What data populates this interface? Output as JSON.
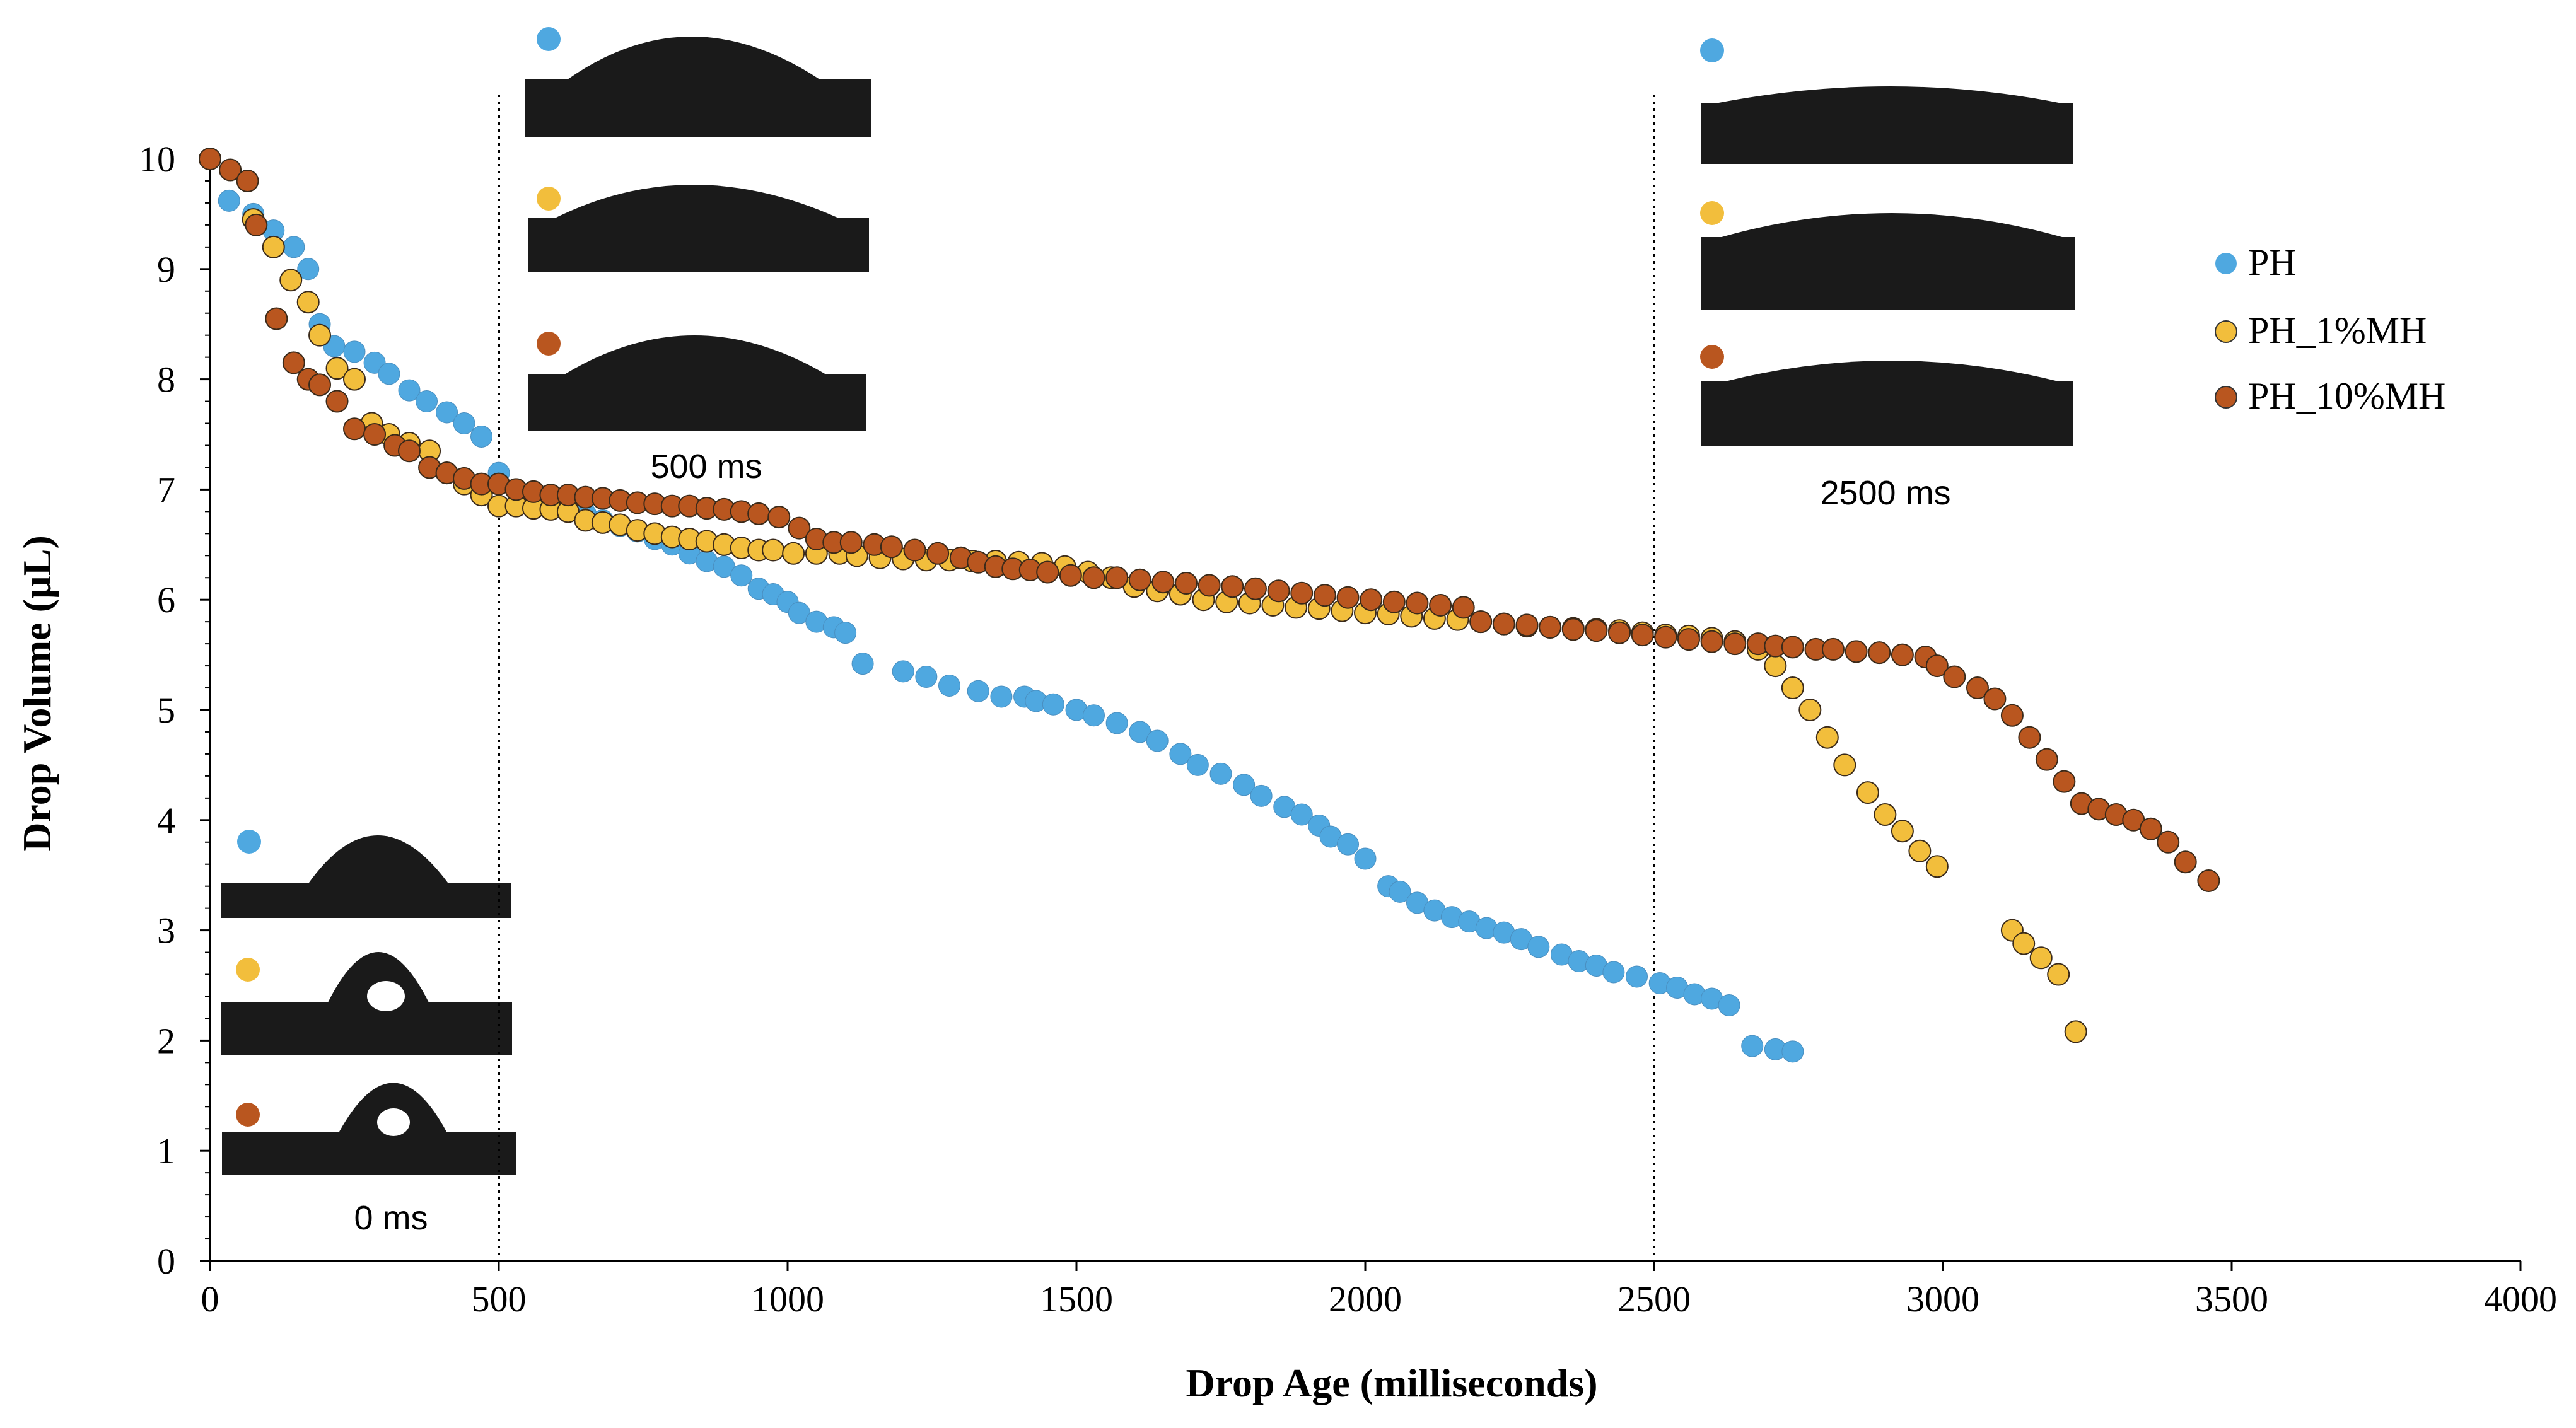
{
  "colors": {
    "PH": "#4FA8E0",
    "PH_1%MH": "#F2BE3C",
    "PH_10%MH": "#B9561F",
    "axis": "#000000",
    "photo_bg": "#1a1a1a"
  },
  "chart_data": {
    "type": "scatter",
    "title": "",
    "xlabel": "Drop Age (milliseconds)",
    "ylabel": "Drop Volume (µL)",
    "xlim": [
      0,
      4000
    ],
    "ylim": [
      0,
      10
    ],
    "xticks": [
      "0",
      "500",
      "1000",
      "1500",
      "2000",
      "2500",
      "3000",
      "3500",
      "4000"
    ],
    "yticks": [
      "0",
      "1",
      "2",
      "3",
      "4",
      "5",
      "6",
      "7",
      "8",
      "9",
      "10"
    ],
    "grid": false,
    "legend_position": "right",
    "reference_lines_x": [
      500,
      2500
    ],
    "annotations": [
      "0 ms",
      "500 ms",
      "2500 ms"
    ],
    "series": [
      {
        "name": "PH",
        "points": [
          [
            0,
            10
          ],
          [
            33,
            9.62
          ],
          [
            75,
            9.5
          ],
          [
            110,
            9.35
          ],
          [
            145,
            9.2
          ],
          [
            170,
            9.0
          ],
          [
            190,
            8.5
          ],
          [
            215,
            8.3
          ],
          [
            250,
            8.25
          ],
          [
            285,
            8.15
          ],
          [
            310,
            8.05
          ],
          [
            345,
            7.9
          ],
          [
            375,
            7.8
          ],
          [
            410,
            7.7
          ],
          [
            440,
            7.6
          ],
          [
            470,
            7.48
          ],
          [
            500,
            7.15
          ],
          [
            530,
            7.0
          ],
          [
            560,
            6.95
          ],
          [
            590,
            6.88
          ],
          [
            620,
            6.83
          ],
          [
            650,
            6.78
          ],
          [
            680,
            6.72
          ],
          [
            710,
            6.67
          ],
          [
            740,
            6.62
          ],
          [
            770,
            6.55
          ],
          [
            800,
            6.5
          ],
          [
            830,
            6.42
          ],
          [
            860,
            6.35
          ],
          [
            890,
            6.3
          ],
          [
            920,
            6.22
          ],
          [
            950,
            6.1
          ],
          [
            975,
            6.05
          ],
          [
            1000,
            5.98
          ],
          [
            1020,
            5.88
          ],
          [
            1050,
            5.8
          ],
          [
            1080,
            5.75
          ],
          [
            1100,
            5.7
          ],
          [
            1130,
            5.42
          ],
          [
            1200,
            5.35
          ],
          [
            1240,
            5.3
          ],
          [
            1280,
            5.22
          ],
          [
            1330,
            5.17
          ],
          [
            1370,
            5.12
          ],
          [
            1410,
            5.12
          ],
          [
            1430,
            5.08
          ],
          [
            1460,
            5.05
          ],
          [
            1500,
            5.0
          ],
          [
            1530,
            4.95
          ],
          [
            1570,
            4.88
          ],
          [
            1610,
            4.8
          ],
          [
            1640,
            4.72
          ],
          [
            1680,
            4.6
          ],
          [
            1710,
            4.5
          ],
          [
            1750,
            4.42
          ],
          [
            1790,
            4.32
          ],
          [
            1820,
            4.22
          ],
          [
            1860,
            4.12
          ],
          [
            1890,
            4.05
          ],
          [
            1920,
            3.95
          ],
          [
            1940,
            3.85
          ],
          [
            1970,
            3.78
          ],
          [
            2000,
            3.65
          ],
          [
            2040,
            3.4
          ],
          [
            2060,
            3.35
          ],
          [
            2090,
            3.25
          ],
          [
            2120,
            3.18
          ],
          [
            2150,
            3.12
          ],
          [
            2180,
            3.08
          ],
          [
            2210,
            3.02
          ],
          [
            2240,
            2.98
          ],
          [
            2270,
            2.92
          ],
          [
            2300,
            2.85
          ],
          [
            2340,
            2.78
          ],
          [
            2370,
            2.72
          ],
          [
            2400,
            2.68
          ],
          [
            2430,
            2.62
          ],
          [
            2470,
            2.58
          ],
          [
            2510,
            2.52
          ],
          [
            2540,
            2.48
          ],
          [
            2570,
            2.42
          ],
          [
            2600,
            2.38
          ],
          [
            2630,
            2.32
          ],
          [
            2670,
            1.95
          ],
          [
            2710,
            1.92
          ],
          [
            2740,
            1.9
          ]
        ]
      },
      {
        "name": "PH_1%MH",
        "points": [
          [
            0,
            10
          ],
          [
            75,
            9.45
          ],
          [
            110,
            9.2
          ],
          [
            140,
            8.9
          ],
          [
            170,
            8.7
          ],
          [
            190,
            8.4
          ],
          [
            220,
            8.1
          ],
          [
            250,
            8.0
          ],
          [
            280,
            7.6
          ],
          [
            310,
            7.5
          ],
          [
            345,
            7.42
          ],
          [
            380,
            7.35
          ],
          [
            410,
            7.15
          ],
          [
            440,
            7.05
          ],
          [
            470,
            6.95
          ],
          [
            500,
            6.85
          ],
          [
            530,
            6.85
          ],
          [
            560,
            6.83
          ],
          [
            590,
            6.82
          ],
          [
            620,
            6.8
          ],
          [
            650,
            6.72
          ],
          [
            680,
            6.7
          ],
          [
            710,
            6.68
          ],
          [
            740,
            6.63
          ],
          [
            770,
            6.6
          ],
          [
            800,
            6.57
          ],
          [
            830,
            6.55
          ],
          [
            860,
            6.53
          ],
          [
            890,
            6.5
          ],
          [
            920,
            6.47
          ],
          [
            950,
            6.45
          ],
          [
            975,
            6.45
          ],
          [
            1010,
            6.42
          ],
          [
            1050,
            6.42
          ],
          [
            1090,
            6.42
          ],
          [
            1120,
            6.4
          ],
          [
            1160,
            6.38
          ],
          [
            1200,
            6.37
          ],
          [
            1240,
            6.36
          ],
          [
            1280,
            6.36
          ],
          [
            1320,
            6.35
          ],
          [
            1360,
            6.35
          ],
          [
            1400,
            6.34
          ],
          [
            1440,
            6.33
          ],
          [
            1480,
            6.3
          ],
          [
            1520,
            6.25
          ],
          [
            1560,
            6.2
          ],
          [
            1600,
            6.12
          ],
          [
            1640,
            6.08
          ],
          [
            1680,
            6.05
          ],
          [
            1720,
            6.0
          ],
          [
            1760,
            5.98
          ],
          [
            1800,
            5.97
          ],
          [
            1840,
            5.95
          ],
          [
            1880,
            5.93
          ],
          [
            1920,
            5.92
          ],
          [
            1960,
            5.9
          ],
          [
            2000,
            5.88
          ],
          [
            2040,
            5.87
          ],
          [
            2080,
            5.85
          ],
          [
            2120,
            5.83
          ],
          [
            2160,
            5.82
          ],
          [
            2200,
            5.8
          ],
          [
            2240,
            5.78
          ],
          [
            2280,
            5.76
          ],
          [
            2320,
            5.75
          ],
          [
            2360,
            5.74
          ],
          [
            2400,
            5.73
          ],
          [
            2440,
            5.72
          ],
          [
            2480,
            5.7
          ],
          [
            2520,
            5.68
          ],
          [
            2560,
            5.67
          ],
          [
            2600,
            5.65
          ],
          [
            2640,
            5.62
          ],
          [
            2680,
            5.55
          ],
          [
            2710,
            5.4
          ],
          [
            2740,
            5.2
          ],
          [
            2770,
            5.0
          ],
          [
            2800,
            4.75
          ],
          [
            2830,
            4.5
          ],
          [
            2870,
            4.25
          ],
          [
            2900,
            4.05
          ],
          [
            2930,
            3.9
          ],
          [
            2960,
            3.72
          ],
          [
            2990,
            3.58
          ],
          [
            3120,
            3.0
          ],
          [
            3140,
            2.88
          ],
          [
            3170,
            2.75
          ],
          [
            3200,
            2.6
          ],
          [
            3230,
            2.08
          ]
        ]
      },
      {
        "name": "PH_10%MH",
        "points": [
          [
            0,
            10
          ],
          [
            35,
            9.9
          ],
          [
            65,
            9.8
          ],
          [
            80,
            9.4
          ],
          [
            115,
            8.55
          ],
          [
            145,
            8.15
          ],
          [
            170,
            8.0
          ],
          [
            190,
            7.95
          ],
          [
            220,
            7.8
          ],
          [
            250,
            7.55
          ],
          [
            285,
            7.5
          ],
          [
            320,
            7.4
          ],
          [
            345,
            7.35
          ],
          [
            380,
            7.2
          ],
          [
            410,
            7.15
          ],
          [
            440,
            7.1
          ],
          [
            470,
            7.05
          ],
          [
            500,
            7.05
          ],
          [
            530,
            7.0
          ],
          [
            560,
            6.98
          ],
          [
            590,
            6.95
          ],
          [
            620,
            6.95
          ],
          [
            650,
            6.93
          ],
          [
            680,
            6.92
          ],
          [
            710,
            6.9
          ],
          [
            740,
            6.88
          ],
          [
            770,
            6.87
          ],
          [
            800,
            6.85
          ],
          [
            830,
            6.85
          ],
          [
            860,
            6.83
          ],
          [
            890,
            6.82
          ],
          [
            920,
            6.8
          ],
          [
            950,
            6.78
          ],
          [
            985,
            6.75
          ],
          [
            1020,
            6.65
          ],
          [
            1050,
            6.55
          ],
          [
            1080,
            6.52
          ],
          [
            1110,
            6.52
          ],
          [
            1150,
            6.5
          ],
          [
            1180,
            6.48
          ],
          [
            1220,
            6.45
          ],
          [
            1260,
            6.42
          ],
          [
            1300,
            6.38
          ],
          [
            1330,
            6.34
          ],
          [
            1360,
            6.3
          ],
          [
            1390,
            6.28
          ],
          [
            1420,
            6.27
          ],
          [
            1450,
            6.25
          ],
          [
            1490,
            6.22
          ],
          [
            1530,
            6.2
          ],
          [
            1570,
            6.2
          ],
          [
            1610,
            6.18
          ],
          [
            1650,
            6.16
          ],
          [
            1690,
            6.15
          ],
          [
            1730,
            6.13
          ],
          [
            1770,
            6.12
          ],
          [
            1810,
            6.1
          ],
          [
            1850,
            6.08
          ],
          [
            1890,
            6.06
          ],
          [
            1930,
            6.04
          ],
          [
            1970,
            6.02
          ],
          [
            2010,
            6.0
          ],
          [
            2050,
            5.98
          ],
          [
            2090,
            5.97
          ],
          [
            2130,
            5.95
          ],
          [
            2170,
            5.93
          ],
          [
            2200,
            5.8
          ],
          [
            2240,
            5.78
          ],
          [
            2280,
            5.77
          ],
          [
            2320,
            5.75
          ],
          [
            2360,
            5.73
          ],
          [
            2400,
            5.72
          ],
          [
            2440,
            5.7
          ],
          [
            2480,
            5.68
          ],
          [
            2520,
            5.66
          ],
          [
            2560,
            5.64
          ],
          [
            2600,
            5.62
          ],
          [
            2640,
            5.6
          ],
          [
            2680,
            5.6
          ],
          [
            2710,
            5.58
          ],
          [
            2740,
            5.57
          ],
          [
            2780,
            5.55
          ],
          [
            2810,
            5.55
          ],
          [
            2850,
            5.53
          ],
          [
            2890,
            5.52
          ],
          [
            2930,
            5.5
          ],
          [
            2970,
            5.48
          ],
          [
            2990,
            5.4
          ],
          [
            3020,
            5.3
          ],
          [
            3060,
            5.2
          ],
          [
            3090,
            5.1
          ],
          [
            3120,
            4.95
          ],
          [
            3150,
            4.75
          ],
          [
            3180,
            4.55
          ],
          [
            3210,
            4.35
          ],
          [
            3240,
            4.15
          ],
          [
            3270,
            4.1
          ],
          [
            3300,
            4.05
          ],
          [
            3330,
            4.0
          ],
          [
            3360,
            3.92
          ],
          [
            3390,
            3.8
          ],
          [
            3420,
            3.62
          ],
          [
            3460,
            3.45
          ]
        ]
      }
    ]
  }
}
